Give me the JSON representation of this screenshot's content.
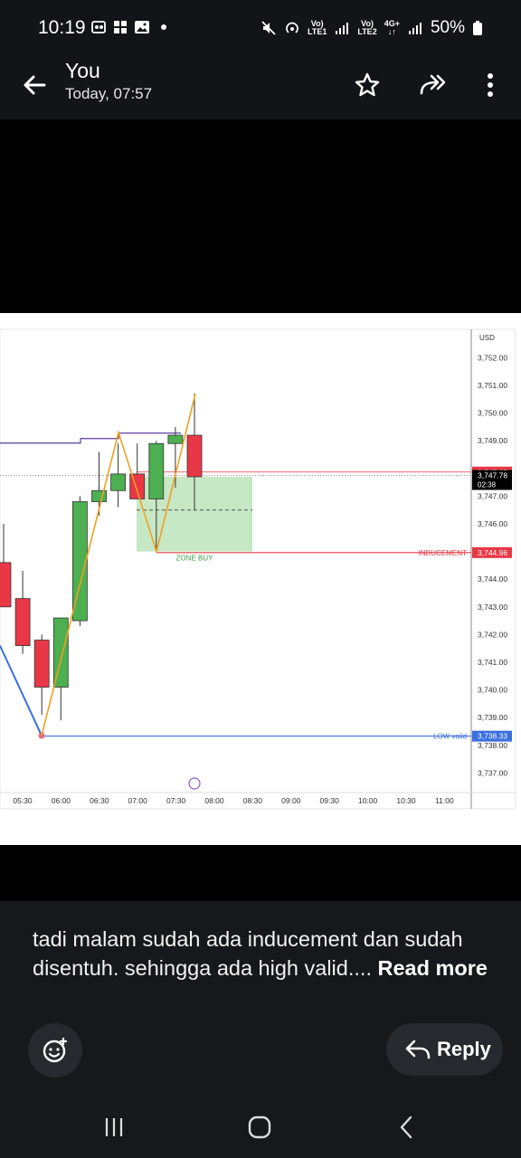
{
  "status_bar": {
    "time": "10:19",
    "net1": "Vo)\nLTE1",
    "net2": "Vo)\nLTE2",
    "net3": "4G+\n↓↑",
    "battery": "50%"
  },
  "header": {
    "title": "You",
    "subtitle": "Today, 07:57",
    "icons": [
      "back-arrow-icon",
      "star-icon",
      "forward-icon",
      "more-vert-icon"
    ]
  },
  "chart_data": {
    "type": "candlestick",
    "currency_label": "USD",
    "y_ticks": [
      "3,752.00",
      "3,751.00",
      "3,750.00",
      "3,749.00",
      "3,747.00",
      "3,746.00",
      "3,744.00",
      "3,743.00",
      "3,742.00",
      "3,741.00",
      "3,740.00",
      "3,739.00",
      "3,738.00",
      "3,737.00"
    ],
    "y_tick_values": [
      3752,
      3751,
      3750,
      3749,
      3747,
      3746,
      3744,
      3743,
      3742,
      3741,
      3740,
      3739,
      3738,
      3737
    ],
    "x_ticks": [
      "05:30",
      "06:00",
      "06:30",
      "07:00",
      "07:30",
      "08:00",
      "08:30",
      "09:00",
      "09:30",
      "10:00",
      "10:30",
      "11:00"
    ],
    "candles": [
      {
        "o": 3744.6,
        "h": 3746.0,
        "l": 3743.0,
        "c": 3743.0
      },
      {
        "o": 3743.3,
        "h": 3744.3,
        "l": 3741.3,
        "c": 3741.6
      },
      {
        "o": 3741.8,
        "h": 3742.0,
        "l": 3739.1,
        "c": 3740.1
      },
      {
        "o": 3740.1,
        "h": 3742.6,
        "l": 3738.9,
        "c": 3742.6
      },
      {
        "o": 3742.5,
        "h": 3747.0,
        "l": 3742.3,
        "c": 3746.8
      },
      {
        "o": 3746.8,
        "h": 3748.6,
        "l": 3746.3,
        "c": 3747.2
      },
      {
        "o": 3747.2,
        "h": 3748.9,
        "l": 3746.6,
        "c": 3747.8
      },
      {
        "o": 3747.8,
        "h": 3748.9,
        "l": 3746.9,
        "c": 3746.9
      },
      {
        "o": 3746.9,
        "h": 3749.0,
        "l": 3745.0,
        "c": 3748.9
      },
      {
        "o": 3748.9,
        "h": 3749.5,
        "l": 3747.3,
        "c": 3749.2
      },
      {
        "o": 3749.2,
        "h": 3750.7,
        "l": 3746.5,
        "c": 3747.7
      }
    ],
    "structure_line": [
      3738.35,
      3749.3,
      3745.0,
      3750.7
    ],
    "price_labels": [
      {
        "text": "3,747.87",
        "value": 3747.87,
        "color": "#e83845"
      },
      {
        "text": "3,747.78",
        "timer": "02:38",
        "value": 3747.78,
        "color": "#000000"
      },
      {
        "text": "3,744.96",
        "value": 3744.96,
        "color": "#e83845"
      },
      {
        "text": "3,738.33",
        "value": 3738.33,
        "color": "#3a6fe0"
      }
    ],
    "zone": {
      "label": "ZONE BUY",
      "top": 3747.7,
      "bottom": 3745.0,
      "mid": 3746.5
    },
    "lines": [
      {
        "label": "INDUCEMENT",
        "value": 3744.96,
        "color": "#e83845"
      },
      {
        "label": "LOW valid",
        "value": 3738.33,
        "color": "#3a6fe0"
      }
    ],
    "purple_level": 3748.95,
    "colors": {
      "up": "#4caf50",
      "down": "#e83845",
      "zone": "#c7e8c4",
      "structure": "#f0a020",
      "blue": "#3a6fe0",
      "purple": "#5b3fa3"
    }
  },
  "caption": {
    "text": "tadi malam sudah ada inducement dan sudah disentuh. sehingga ada high valid.... ",
    "read_more": "Read more"
  },
  "actions": {
    "reply_label": "Reply"
  }
}
